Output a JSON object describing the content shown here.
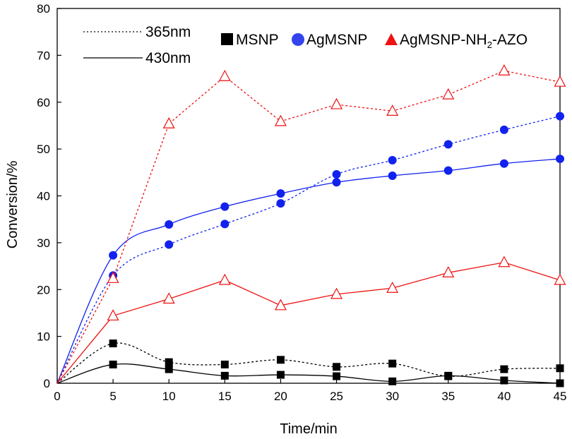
{
  "chart_data": {
    "type": "line",
    "xlabel": "Time/min",
    "ylabel": "Conversion/%",
    "xlim": [
      0,
      45
    ],
    "ylim": [
      0,
      80
    ],
    "x_ticks": [
      "0",
      "5",
      "10",
      "15",
      "20",
      "25",
      "30",
      "35",
      "40",
      "45"
    ],
    "y_ticks": [
      "0",
      "10",
      "20",
      "30",
      "40",
      "50",
      "60",
      "70",
      "80"
    ],
    "grid": false,
    "legend": {
      "line_styles": [
        {
          "label": "365nm",
          "style": "dotted"
        },
        {
          "label": "430nm",
          "style": "solid"
        }
      ],
      "markers": [
        {
          "label": "MSNP",
          "marker": "square",
          "color": "#000000"
        },
        {
          "label": "AgMSNP",
          "marker": "circle",
          "color": "#3344ee"
        },
        {
          "label_main": "AgMSNP-NH",
          "label_sub": "2",
          "label_tail": "-AZO",
          "marker": "triangle",
          "color": "#ee1111"
        }
      ]
    },
    "x": [
      0,
      5,
      10,
      15,
      20,
      25,
      30,
      35,
      40,
      45
    ],
    "series": [
      {
        "name": "MSNP 365nm",
        "marker": "square",
        "style": "dotted",
        "color": "#000000",
        "values": [
          0,
          8.5,
          4.5,
          4.0,
          5.0,
          3.5,
          4.2,
          1.5,
          3.0,
          3.2
        ]
      },
      {
        "name": "MSNP 430nm",
        "marker": "square",
        "style": "solid",
        "color": "#000000",
        "values": [
          0,
          4.0,
          3.0,
          1.6,
          1.8,
          1.5,
          0.4,
          1.6,
          0.6,
          0.0
        ]
      },
      {
        "name": "AgMSNP 365nm",
        "marker": "circle",
        "style": "dotted",
        "color": "#1122ee",
        "values": [
          0,
          23.0,
          29.6,
          34.0,
          38.4,
          44.6,
          47.6,
          51.0,
          54.1,
          57.0
        ]
      },
      {
        "name": "AgMSNP 430nm",
        "marker": "circle",
        "style": "solid",
        "color": "#1122ee",
        "values": [
          0,
          27.3,
          33.9,
          37.7,
          40.5,
          42.9,
          44.3,
          45.4,
          46.9,
          47.9
        ]
      },
      {
        "name": "AgMSNP-NH2-AZO 365nm",
        "marker": "triangle",
        "style": "dotted",
        "color": "#ee1111",
        "values": [
          0,
          22.4,
          55.4,
          65.5,
          55.9,
          59.5,
          58.1,
          61.6,
          66.7,
          64.3
        ]
      },
      {
        "name": "AgMSNP-NH2-AZO 430nm",
        "marker": "triangle",
        "style": "solid",
        "color": "#ee1111",
        "values": [
          0,
          14.4,
          18.0,
          22.0,
          16.6,
          19.0,
          20.3,
          23.6,
          25.8,
          22.0
        ]
      }
    ]
  }
}
